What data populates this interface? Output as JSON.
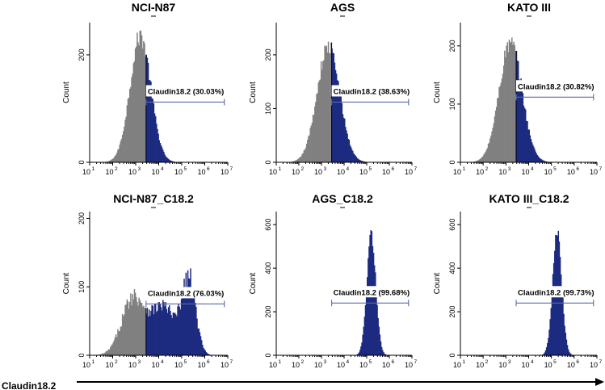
{
  "figure": {
    "x_axis_label": "Claudin18.2"
  },
  "colors": {
    "negative_fill": "#808080",
    "positive_fill": "#1c2a80",
    "gate_line": "#5a6aa8",
    "axis": "#000000"
  },
  "chart_data": [
    {
      "type": "area",
      "title": "NCI-N87",
      "ylabel": "Count",
      "xscale": "log",
      "xlim_log10": [
        1,
        7
      ],
      "x_ticks": [
        "10",
        "10",
        "10",
        "10",
        "10",
        "10",
        "10"
      ],
      "x_tick_exponents": [
        "1",
        "2",
        "3",
        "4",
        "5",
        "6",
        "7"
      ],
      "ylim": [
        0,
        260
      ],
      "y_ticks": [
        "0",
        "200"
      ],
      "y_tick_values": [
        0,
        200
      ],
      "gate_label": "Claudin18.2 (30.03%)",
      "gate_log10": [
        3.45,
        6.85
      ],
      "gate_count": 112,
      "split_log10": 3.45,
      "peaks": [
        {
          "center_log10": 3.2,
          "sigma_log10": 0.45,
          "height": 235
        }
      ],
      "noise": 0.08
    },
    {
      "type": "area",
      "title": "AGS",
      "ylabel": "Count",
      "xscale": "log",
      "xlim_log10": [
        1,
        7
      ],
      "x_ticks": [
        "10",
        "10",
        "10",
        "10",
        "10",
        "10",
        "10"
      ],
      "x_tick_exponents": [
        "1",
        "2",
        "3",
        "4",
        "5",
        "6",
        "7"
      ],
      "ylim": [
        0,
        260
      ],
      "y_ticks": [
        "0",
        "100",
        "200"
      ],
      "y_tick_values": [
        0,
        100,
        200
      ],
      "gate_label": "Claudin18.2 (38.63%)",
      "gate_log10": [
        3.45,
        6.85
      ],
      "gate_count": 112,
      "split_log10": 3.45,
      "peaks": [
        {
          "center_log10": 3.3,
          "sigma_log10": 0.5,
          "height": 215
        }
      ],
      "noise": 0.08
    },
    {
      "type": "area",
      "title": "KATO III",
      "ylabel": "Count",
      "xscale": "log",
      "xlim_log10": [
        1,
        7
      ],
      "x_ticks": [
        "10",
        "10",
        "10",
        "10",
        "10",
        "10",
        "10"
      ],
      "x_tick_exponents": [
        "1",
        "2",
        "3",
        "4",
        "5",
        "6",
        "7"
      ],
      "ylim": [
        0,
        240
      ],
      "y_ticks": [
        "0",
        "100",
        "200"
      ],
      "y_tick_values": [
        0,
        100,
        200
      ],
      "gate_label": "Claudin18.2 (30.82%)",
      "gate_log10": [
        3.45,
        6.85
      ],
      "gate_count": 112,
      "split_log10": 3.45,
      "peaks": [
        {
          "center_log10": 3.2,
          "sigma_log10": 0.5,
          "height": 205
        }
      ],
      "noise": 0.08
    },
    {
      "type": "area",
      "title": "NCI-N87_C18.2",
      "ylabel": "Count",
      "xscale": "log",
      "xlim_log10": [
        1,
        7
      ],
      "x_ticks": [
        "10",
        "10",
        "10",
        "10",
        "10",
        "10",
        "10"
      ],
      "x_tick_exponents": [
        "1",
        "2",
        "3",
        "4",
        "5",
        "6",
        "7"
      ],
      "ylim": [
        0,
        210
      ],
      "y_ticks": [
        "0",
        "100",
        "200"
      ],
      "y_tick_values": [
        0,
        100,
        200
      ],
      "gate_label": "Claudin18.2 (76.03%)",
      "gate_log10": [
        3.45,
        6.85
      ],
      "gate_count": 75,
      "split_log10": 3.45,
      "peaks": [
        {
          "center_log10": 2.9,
          "sigma_log10": 0.5,
          "height": 85
        },
        {
          "center_log10": 4.2,
          "sigma_log10": 0.5,
          "height": 70
        },
        {
          "center_log10": 5.3,
          "sigma_log10": 0.3,
          "height": 110
        }
      ],
      "noise": 0.15
    },
    {
      "type": "area",
      "title": "AGS_C18.2",
      "ylabel": "Count",
      "xscale": "log",
      "xlim_log10": [
        1,
        7
      ],
      "x_ticks": [
        "10",
        "10",
        "10",
        "10",
        "10",
        "10",
        "10"
      ],
      "x_tick_exponents": [
        "1",
        "2",
        "3",
        "4",
        "5",
        "6",
        "7"
      ],
      "ylim": [
        0,
        660
      ],
      "y_ticks": [
        "0",
        "200",
        "400",
        "600"
      ],
      "y_tick_values": [
        0,
        200,
        400,
        600
      ],
      "gate_label": "Claudin18.2 (99.68%)",
      "gate_log10": [
        3.45,
        6.85
      ],
      "gate_count": 240,
      "split_log10": 3.45,
      "peaks": [
        {
          "center_log10": 5.2,
          "sigma_log10": 0.2,
          "height": 555
        }
      ],
      "noise": 0.06
    },
    {
      "type": "area",
      "title": "KATO III_C18.2",
      "ylabel": "Count",
      "xscale": "log",
      "xlim_log10": [
        1,
        7
      ],
      "x_ticks": [
        "10",
        "10",
        "10",
        "10",
        "10",
        "10",
        "10"
      ],
      "x_tick_exponents": [
        "1",
        "2",
        "3",
        "4",
        "5",
        "6",
        "7"
      ],
      "ylim": [
        0,
        660
      ],
      "y_ticks": [
        "0",
        "200",
        "400",
        "600"
      ],
      "y_tick_values": [
        0,
        200,
        400,
        600
      ],
      "gate_label": "Claudin18.2 (99.73%)",
      "gate_log10": [
        3.45,
        6.85
      ],
      "gate_count": 240,
      "split_log10": 3.45,
      "peaks": [
        {
          "center_log10": 5.25,
          "sigma_log10": 0.2,
          "height": 560
        }
      ],
      "noise": 0.06
    }
  ]
}
